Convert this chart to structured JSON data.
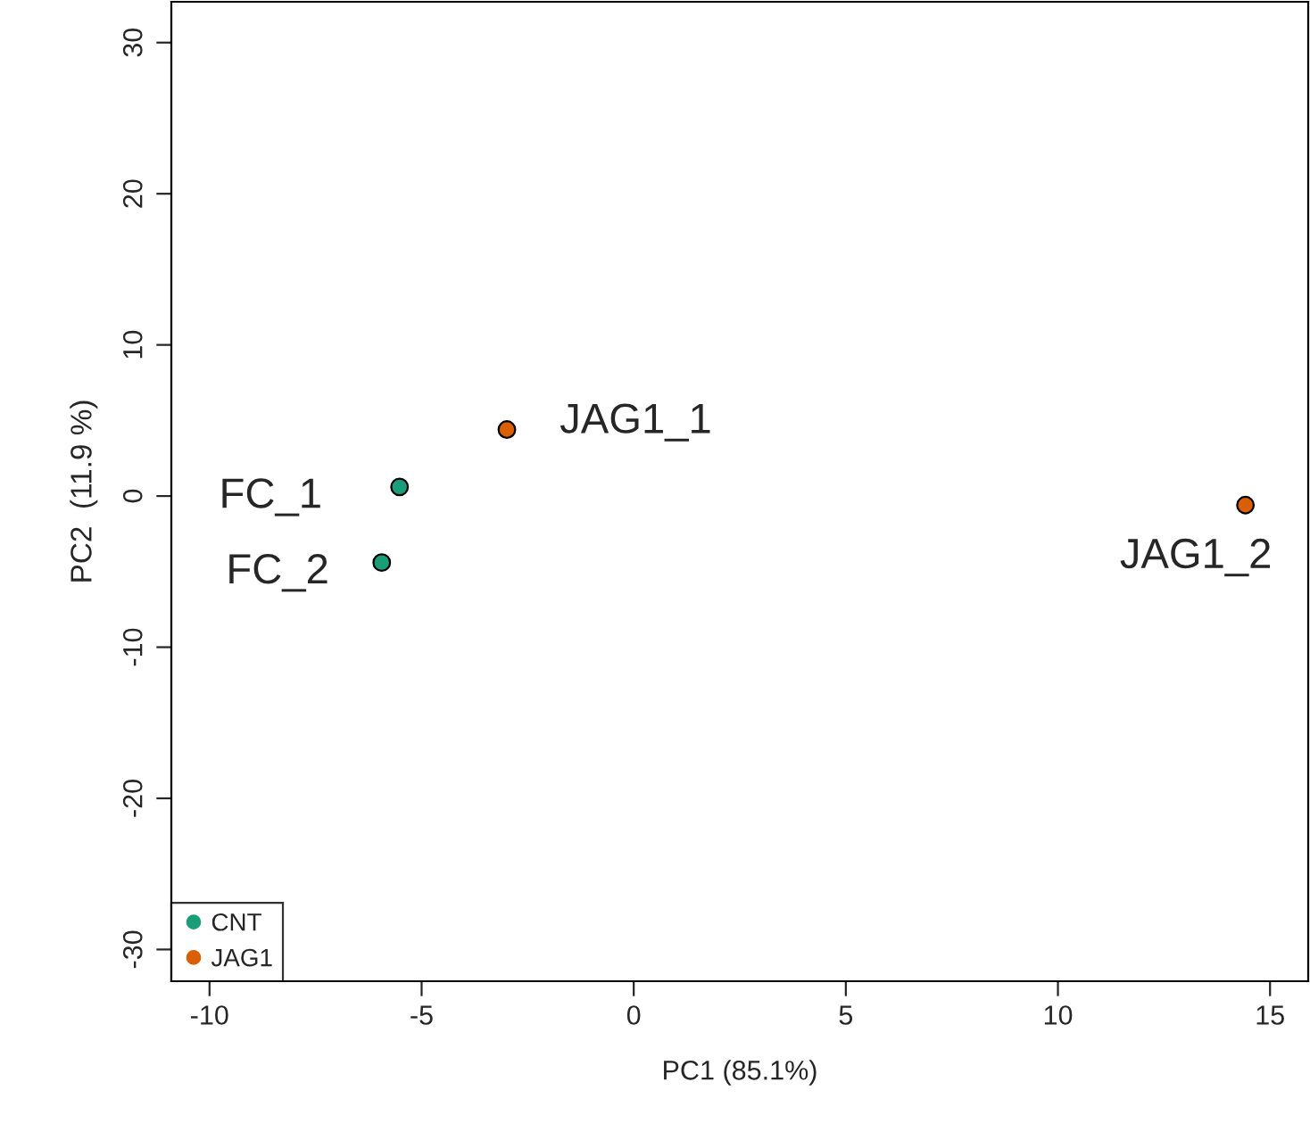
{
  "chart_data": {
    "type": "scatter",
    "xlabel": "PC1 (85.1%)",
    "ylabel": "PC2  (11.9 %)",
    "xlim": [
      -10.9,
      15.9
    ],
    "ylim": [
      -32.1,
      32.7
    ],
    "xticks": [
      -10,
      -5,
      0,
      5,
      10,
      15
    ],
    "yticks": [
      -30,
      -20,
      -10,
      0,
      10,
      20,
      30
    ],
    "marker": "circle",
    "grid": false,
    "legend": "bottom left",
    "series": [
      {
        "name": "CNT",
        "color": "#1b9e77",
        "x": [
          -5.52,
          -5.94
        ],
        "values": [
          0.6,
          -4.4
        ]
      },
      {
        "name": "JAG1",
        "color": "#d95f02",
        "x": [
          -2.99,
          14.42
        ],
        "values": [
          4.4,
          -0.6
        ]
      }
    ],
    "annotations": [
      {
        "text": "FC_1",
        "x": -5.52,
        "y": 0.6
      },
      {
        "text": "FC_2",
        "x": -5.94,
        "y": -4.4
      },
      {
        "text": "JAG1_1",
        "x": -2.99,
        "y": 4.4
      },
      {
        "text": "JAG1_2",
        "x": 14.42,
        "y": -0.6
      }
    ]
  }
}
